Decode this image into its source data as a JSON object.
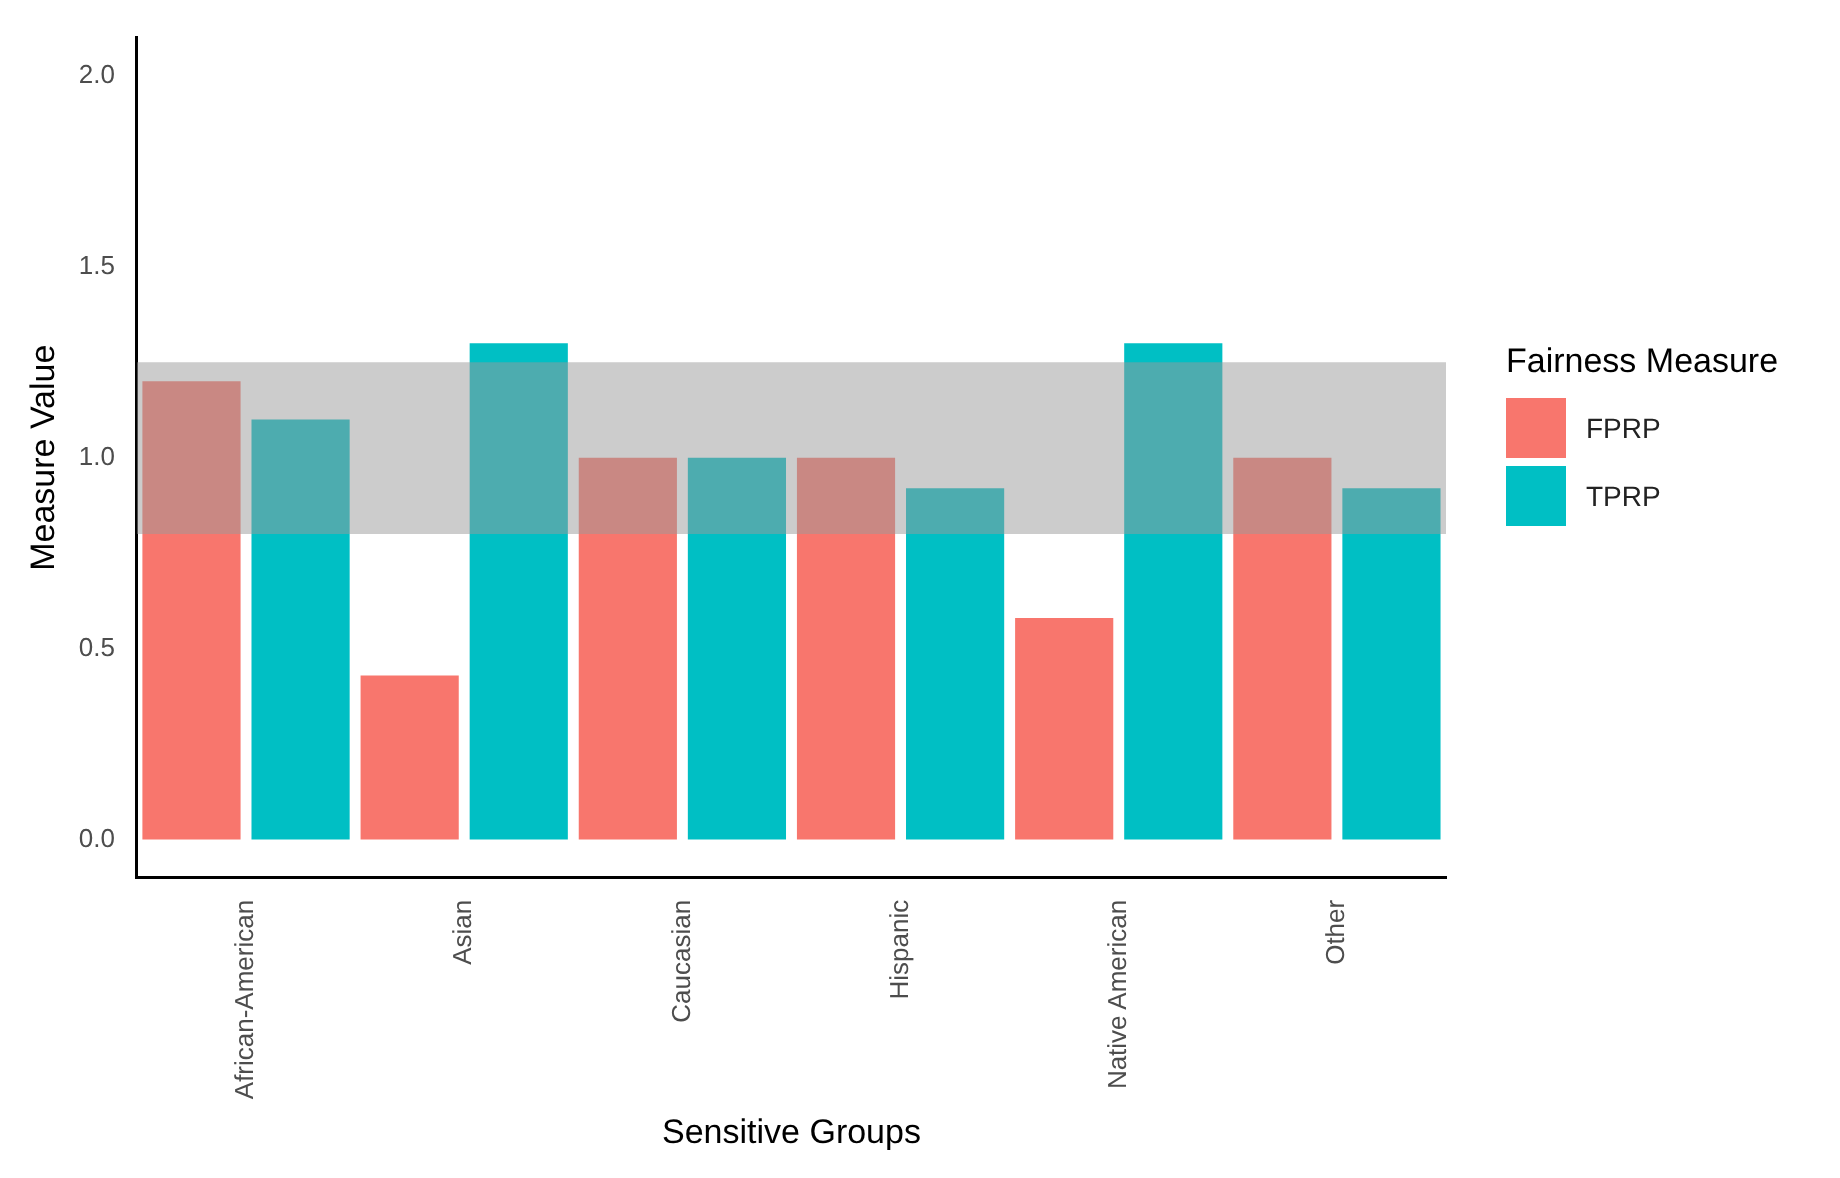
{
  "chart_data": {
    "type": "bar",
    "xlabel": "Sensitive Groups",
    "ylabel": "Measure Value",
    "legend_title": "Fairness Measure",
    "categories": [
      "African-American",
      "Asian",
      "Caucasian",
      "Hispanic",
      "Native American",
      "Other"
    ],
    "series": [
      {
        "name": "FPRP",
        "color": "#f8766d",
        "values": [
          1.2,
          0.43,
          1.0,
          1.0,
          0.58,
          1.0
        ]
      },
      {
        "name": "TPRP",
        "color": "#00bfc4",
        "values": [
          1.1,
          1.3,
          1.0,
          0.92,
          1.3,
          0.92
        ]
      }
    ],
    "ylim": [
      -0.1,
      2.1
    ],
    "yticks": [
      {
        "value": 0,
        "label": "0.0"
      },
      0.5,
      {
        "value": 1,
        "label": "1.0"
      },
      1.5,
      {
        "value": 2,
        "label": "2.0"
      }
    ],
    "bands": [
      {
        "axis": "y",
        "from": 0.8,
        "to": 1.25,
        "color": "#999999"
      }
    ],
    "grid": false,
    "legend": "right"
  }
}
